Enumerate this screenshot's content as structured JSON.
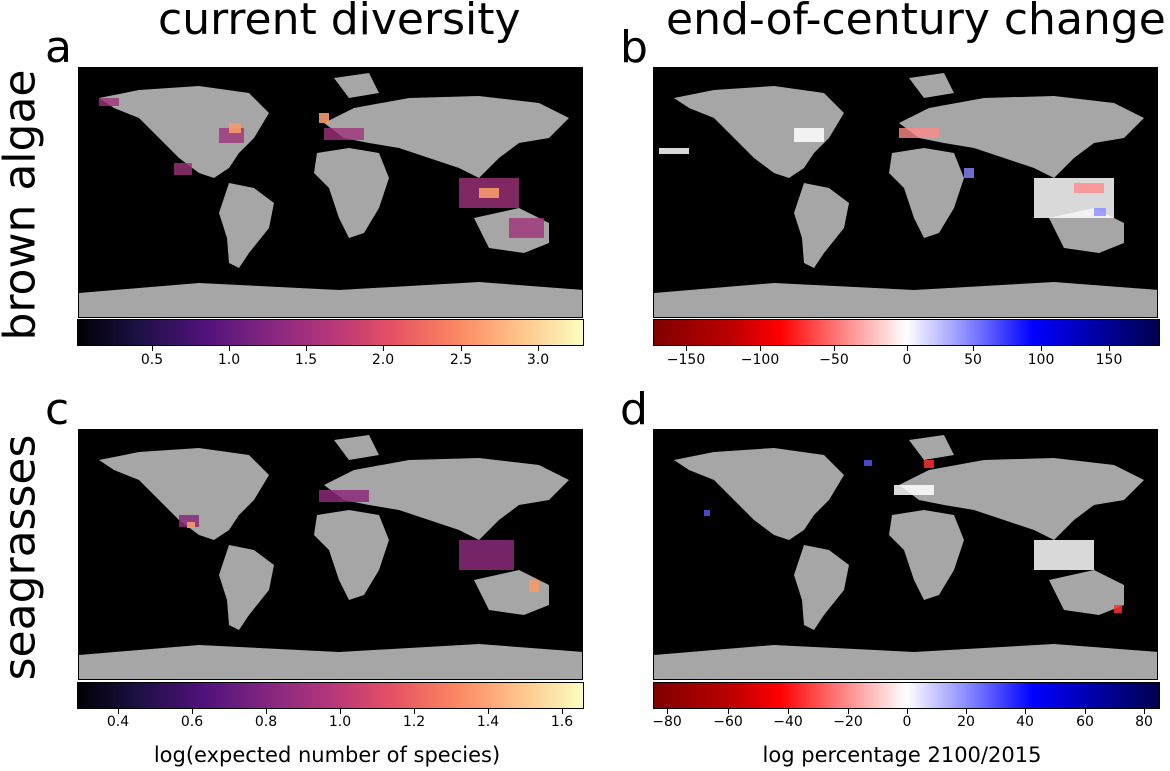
{
  "titles": {
    "left": "current diversity",
    "right": "end-of-century change"
  },
  "rows": {
    "top": "brown algae",
    "bottom": "seagrasses"
  },
  "panels": [
    "a",
    "b",
    "c",
    "d"
  ],
  "colorbars": {
    "a": [
      "0.5",
      "1.0",
      "1.5",
      "2.0",
      "2.5",
      "3.0"
    ],
    "b": [
      "−150",
      "−100",
      "−50",
      "0",
      "50",
      "100",
      "150"
    ],
    "c": [
      "0.4",
      "0.6",
      "0.8",
      "1.0",
      "1.2",
      "1.4",
      "1.6"
    ],
    "d": [
      "−80",
      "−60",
      "−40",
      "−20",
      "0",
      "20",
      "40",
      "60",
      "80"
    ]
  },
  "colorbar_labels": {
    "left": "log(expected number of species)",
    "right": "log percentage 2100/2015"
  },
  "colors": {
    "ocean": "#000000",
    "land": "#a6a6a6"
  }
}
